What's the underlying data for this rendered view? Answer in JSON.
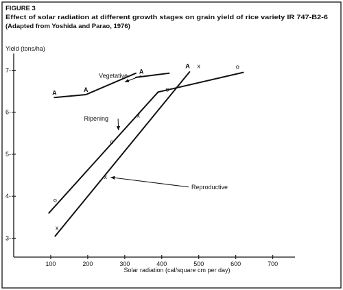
{
  "chart_data": {
    "type": "line",
    "figure_label": "FIGURE 3",
    "title": "Effect of solar radiation at different growth stages on grain yield of rice variety IR 747-B2-6",
    "subtitle": "(Adapted from Yoshida and Parao, 1976)",
    "xlabel": "Solar radiation (cal/square cm per day)",
    "ylabel": "Yield (tons/ha)",
    "xlim": [
      0,
      760
    ],
    "ylim": [
      2.55,
      7.4
    ],
    "xticks": [
      100,
      200,
      300,
      400,
      500,
      600,
      700
    ],
    "xtick_labels": [
      "100",
      "200",
      "300",
      "400",
      "500",
      "600",
      "700"
    ],
    "yticks": [
      3,
      4,
      5,
      6,
      7
    ],
    "ytick_labels": [
      "3-",
      "4-",
      "5-",
      "6-",
      "7-"
    ],
    "grid": false,
    "legend": "none",
    "series": [
      {
        "name": "Vegetative",
        "marker": "A",
        "segments": [
          {
            "x": [
              110,
              195,
              330
            ],
            "y": [
              6.35,
              6.42,
              6.93
            ]
          },
          {
            "x": [
              330,
              420
            ],
            "y": [
              6.83,
              6.93
            ]
          }
        ],
        "points": [
          {
            "x": 110,
            "y": 6.35
          },
          {
            "x": 195,
            "y": 6.42
          },
          {
            "x": 345,
            "y": 6.85
          },
          {
            "x": 470,
            "y": 6.98
          }
        ]
      },
      {
        "name": "Ripening",
        "marker": "o",
        "segments": [
          {
            "x": [
              95,
              390,
              620
            ],
            "y": [
              3.6,
              6.48,
              6.95
            ]
          }
        ],
        "points": [
          {
            "x": 112,
            "y": 3.79
          },
          {
            "x": 265,
            "y": 5.18
          },
          {
            "x": 415,
            "y": 6.43
          },
          {
            "x": 605,
            "y": 6.97
          }
        ]
      },
      {
        "name": "Reproductive",
        "marker": "x",
        "segments": [
          {
            "x": [
              112,
              475
            ],
            "y": [
              3.05,
              6.96
            ]
          }
        ],
        "points": [
          {
            "x": 117,
            "y": 3.13
          },
          {
            "x": 248,
            "y": 4.35
          },
          {
            "x": 337,
            "y": 5.81
          },
          {
            "x": 500,
            "y": 6.98
          }
        ]
      }
    ],
    "annotations": [
      {
        "text": "Vegetative",
        "x": 230,
        "y": 6.82,
        "target": [
          300,
          6.72
        ]
      },
      {
        "text": "Ripening",
        "x": 190,
        "y": 5.8,
        "target": [
          283,
          5.57
        ]
      },
      {
        "text": "Reproductive",
        "x": 480,
        "y": 4.17,
        "target": [
          262,
          4.45
        ]
      }
    ]
  }
}
